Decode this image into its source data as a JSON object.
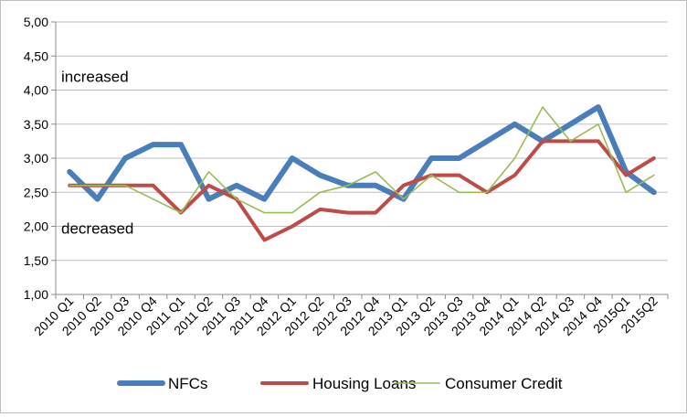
{
  "chart_data": {
    "type": "line",
    "title": "",
    "xlabel": "",
    "ylabel": "",
    "ylim": [
      1.0,
      5.0
    ],
    "ytick_step": 0.5,
    "yticks": [
      "1,00",
      "1,50",
      "2,00",
      "2,50",
      "3,00",
      "3,50",
      "4,00",
      "4,50",
      "5,00"
    ],
    "grid": "horizontal",
    "legend": "bottom",
    "categories": [
      "2010 Q1",
      "2010 Q2",
      "2010 Q3",
      "2010 Q4",
      "2011 Q1",
      "2011 Q2",
      "2011 Q3",
      "2011 Q4",
      "2012 Q1",
      "2012 Q2",
      "2012 Q3",
      "2012 Q4",
      "2013 Q1",
      "2013 Q2",
      "2013 Q3",
      "2013 Q4",
      "2014 Q1",
      "2014 Q2",
      "2014 Q3",
      "2014 Q4",
      "2015Q1",
      "2015Q2"
    ],
    "annotations": [
      {
        "text": "increased",
        "y": 4.2
      },
      {
        "text": "decreased",
        "y": 1.97
      }
    ],
    "series": [
      {
        "name": "NFCs",
        "color": "#4a7ebb",
        "values": [
          2.8,
          2.4,
          3.0,
          3.2,
          3.2,
          2.4,
          2.6,
          2.4,
          3.0,
          2.75,
          2.6,
          2.6,
          2.4,
          3.0,
          3.0,
          3.25,
          3.5,
          3.25,
          3.5,
          3.75,
          2.8,
          2.5
        ]
      },
      {
        "name": "Housing Loans",
        "color": "#be4b48",
        "values": [
          2.6,
          2.6,
          2.6,
          2.6,
          2.2,
          2.6,
          2.4,
          1.8,
          2.0,
          2.25,
          2.2,
          2.2,
          2.6,
          2.75,
          2.75,
          2.5,
          2.75,
          3.25,
          3.25,
          3.25,
          2.75,
          3.0
        ]
      },
      {
        "name": "Consumer Credit",
        "color": "#9bbb59",
        "values": [
          2.6,
          2.6,
          2.6,
          2.4,
          2.2,
          2.8,
          2.4,
          2.2,
          2.2,
          2.5,
          2.6,
          2.8,
          2.4,
          2.75,
          2.5,
          2.5,
          3.0,
          3.75,
          3.25,
          3.5,
          2.5,
          2.75
        ]
      }
    ]
  }
}
